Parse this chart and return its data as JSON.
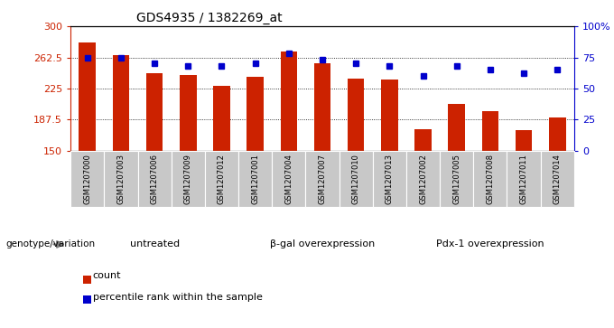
{
  "title": "GDS4935 / 1382269_at",
  "samples": [
    "GSM1207000",
    "GSM1207003",
    "GSM1207006",
    "GSM1207009",
    "GSM1207012",
    "GSM1207001",
    "GSM1207004",
    "GSM1207007",
    "GSM1207010",
    "GSM1207013",
    "GSM1207002",
    "GSM1207005",
    "GSM1207008",
    "GSM1207011",
    "GSM1207014"
  ],
  "counts": [
    281,
    265,
    244,
    241,
    228,
    239,
    270,
    256,
    237,
    236,
    176,
    207,
    198,
    175,
    190
  ],
  "percentiles": [
    75,
    75,
    70,
    68,
    68,
    70,
    78,
    73,
    70,
    68,
    60,
    68,
    65,
    62,
    65
  ],
  "groups": [
    {
      "label": "untreated",
      "start": 0,
      "end": 5
    },
    {
      "label": "β-gal overexpression",
      "start": 5,
      "end": 10
    },
    {
      "label": "Pdx-1 overexpression",
      "start": 10,
      "end": 15
    }
  ],
  "ylim_left": [
    150,
    300
  ],
  "ylim_right": [
    0,
    100
  ],
  "yticks_left": [
    150,
    187.5,
    225,
    262.5,
    300
  ],
  "ytick_labels_left": [
    "150",
    "187.5",
    "225",
    "262.5",
    "300"
  ],
  "yticks_right": [
    0,
    25,
    50,
    75,
    100
  ],
  "ytick_labels_right": [
    "0",
    "25",
    "50",
    "75",
    "100%"
  ],
  "bar_color": "#cc2200",
  "dot_color": "#0000cc",
  "group_bg_color": "#90ee90",
  "sample_bg_color": "#c8c8c8",
  "legend_items": [
    {
      "color": "#cc2200",
      "label": "count"
    },
    {
      "color": "#0000cc",
      "label": "percentile rank within the sample"
    }
  ],
  "genotype_label": "genotype/variation"
}
